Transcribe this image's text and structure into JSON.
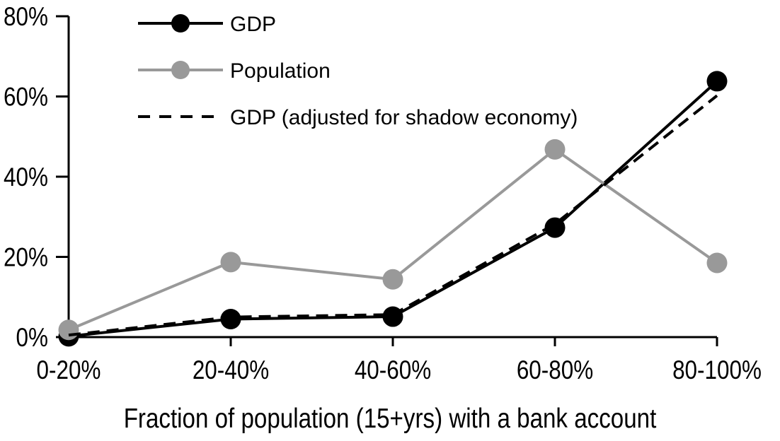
{
  "chart_data": {
    "type": "line",
    "title": "",
    "xlabel": "Fraction of population (15+yrs) with a bank account",
    "ylabel": "",
    "categories": [
      "0-20%",
      "20-40%",
      "40-60%",
      "60-80%",
      "80-100%"
    ],
    "ylim": [
      0,
      80
    ],
    "yticks": [
      {
        "value": 0,
        "label": "0%"
      },
      {
        "value": 20,
        "label": "20%"
      },
      {
        "value": 40,
        "label": "40%"
      },
      {
        "value": 60,
        "label": "60%"
      },
      {
        "value": 80,
        "label": "80%"
      }
    ],
    "grid": false,
    "legend_position": "top-left-inside",
    "axis_color": "#000000",
    "background_color": "#ffffff",
    "series": [
      {
        "name": "GDP",
        "color": "#000000",
        "line_style": "solid",
        "marker": "circle",
        "values": [
          0.2,
          4.5,
          5.1,
          27.3,
          63.8
        ]
      },
      {
        "name": "Population",
        "color": "#999999",
        "line_style": "solid",
        "marker": "circle",
        "values": [
          1.8,
          18.7,
          14.4,
          46.8,
          18.5
        ]
      },
      {
        "name": "GDP (adjusted for shadow economy)",
        "color": "#000000",
        "line_style": "dashed",
        "marker": "none",
        "values": [
          0.5,
          5.0,
          5.6,
          28.2,
          60.2
        ]
      }
    ]
  }
}
